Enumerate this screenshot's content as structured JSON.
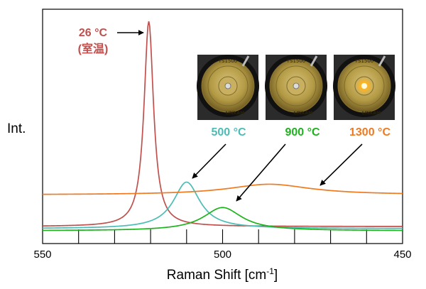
{
  "chart_data": {
    "type": "line",
    "xlabel": "Raman Shift [cm",
    "xlabel_sup": "-1",
    "xlabel_end": "]",
    "ylabel": "Int.",
    "xlim": [
      550,
      450
    ],
    "x_ticks_labeled": [
      "550",
      "500",
      "450"
    ],
    "x_tick_values_labeled": [
      550,
      500,
      450
    ],
    "x_minor_ticks": [
      540,
      530,
      520,
      510,
      490,
      480,
      470,
      460
    ],
    "grid": false,
    "series": [
      {
        "name": "26 °C",
        "color": "#c0504d",
        "peak_x": 520.5,
        "peak_height": 0.97,
        "baseline": 0.02,
        "hwhm": 1.6
      },
      {
        "name": "500 °C",
        "color": "#4bbdb5",
        "peak_x": 510,
        "peak_height": 0.22,
        "baseline": 0.01,
        "hwhm": 4.5
      },
      {
        "name": "900 °C",
        "color": "#1db31d",
        "peak_x": 500,
        "peak_height": 0.11,
        "baseline": 0.0,
        "hwhm": 6.5
      },
      {
        "name": "1300 °C",
        "color": "#f07a20",
        "peak_x": 487,
        "peak_height": 0.05,
        "baseline": 0.17,
        "hwhm": 14
      }
    ],
    "annotations": [
      {
        "series": "26 °C",
        "line1": "26 °C",
        "line2": "(室温)"
      },
      {
        "series": "500 °C",
        "line1": "500 °C"
      },
      {
        "series": "900 °C",
        "line1": "900 °C"
      },
      {
        "series": "1300 °C",
        "line1": "1300 °C"
      }
    ]
  },
  "photos": [
    {
      "label": "TS1500",
      "brand": "LINKAM",
      "glow": false
    },
    {
      "label": "TS1500",
      "brand": "LINKAM",
      "glow": false
    },
    {
      "label": "TS1500",
      "brand": "LINKAM",
      "glow": true
    }
  ]
}
